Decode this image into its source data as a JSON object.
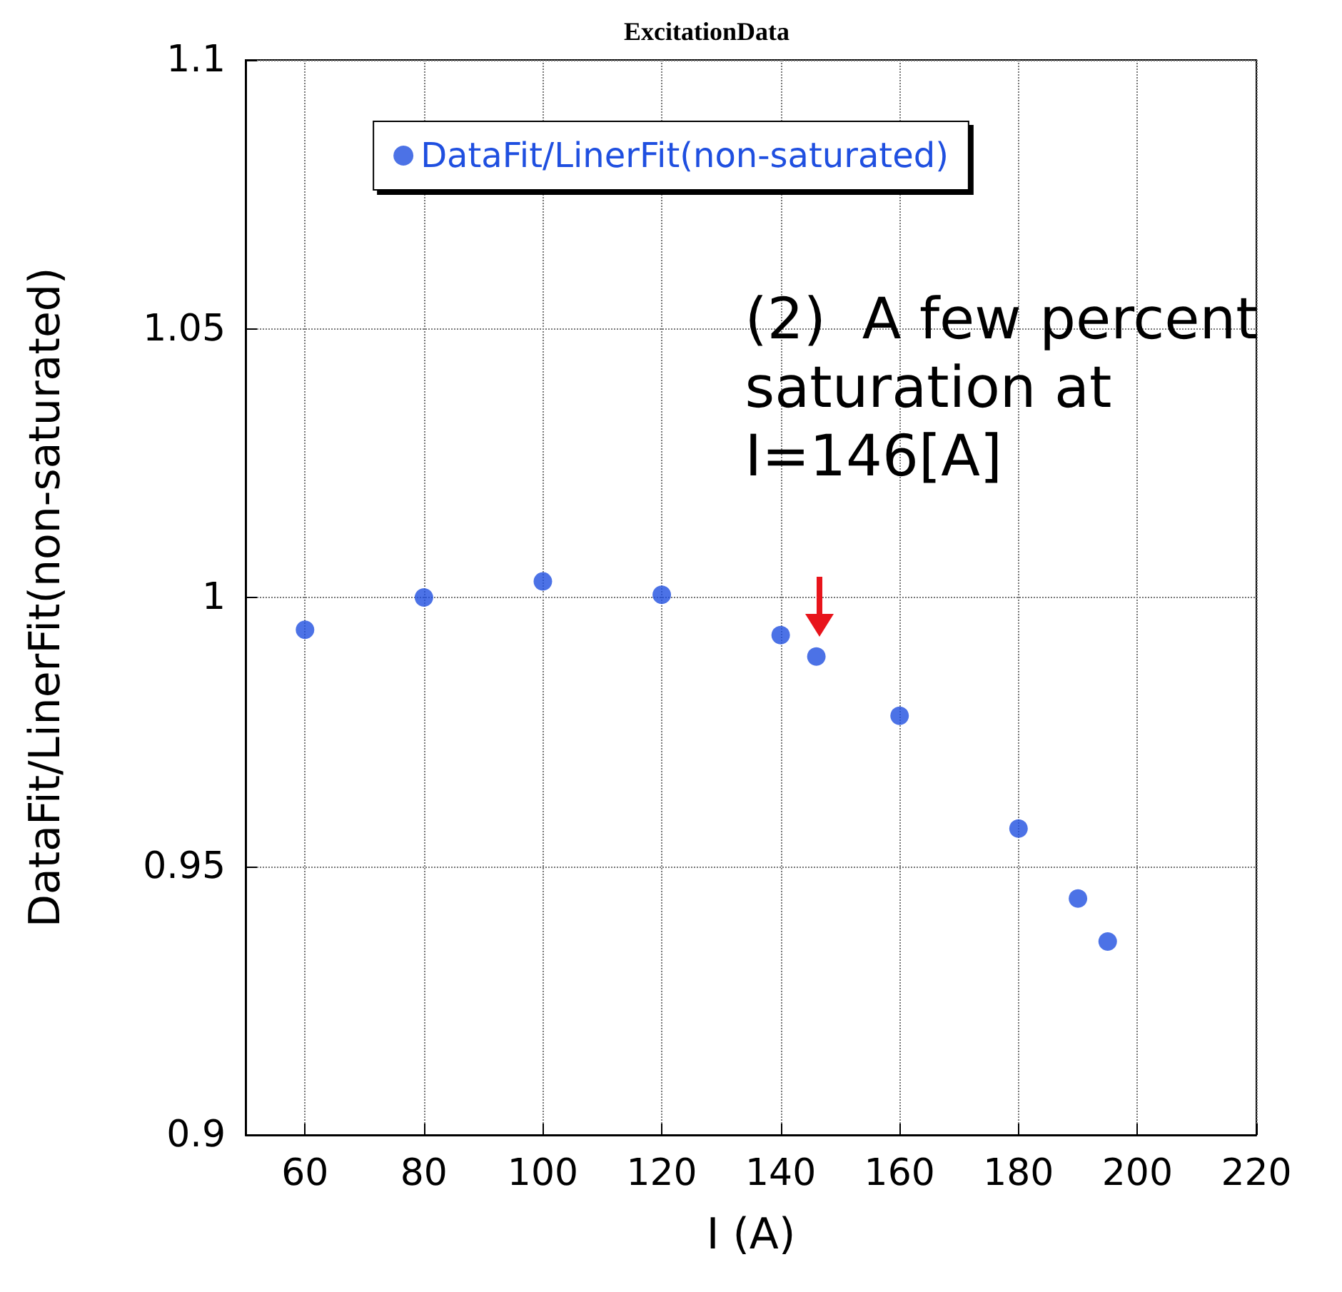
{
  "chart_data": {
    "type": "scatter",
    "title": "ExcitationData",
    "xlabel": "I (A)",
    "ylabel": "DataFit/LinerFit(non-saturated)",
    "x": [
      60,
      80,
      100,
      120,
      140,
      146,
      160,
      180,
      190,
      195
    ],
    "series": [
      {
        "name": "DataFit/LinerFit(non-saturated)",
        "color": "#1f4fe0",
        "values": [
          0.994,
          1.0,
          1.003,
          1.0005,
          0.993,
          0.989,
          0.978,
          0.957,
          0.944,
          0.936
        ]
      }
    ],
    "xlim": [
      50,
      220
    ],
    "xticks": [
      60,
      80,
      100,
      120,
      140,
      160,
      180,
      200,
      220
    ],
    "ylim": [
      0.9,
      1.1
    ],
    "yticks": [
      0.9,
      0.95,
      1,
      1.05,
      1.1
    ],
    "grid": true,
    "legend": "top",
    "marker": "circle",
    "annotations": [
      {
        "text": "(2)  A few percent\nsaturation at\nI=146[A]",
        "x": 146,
        "y": 0.989
      }
    ]
  }
}
